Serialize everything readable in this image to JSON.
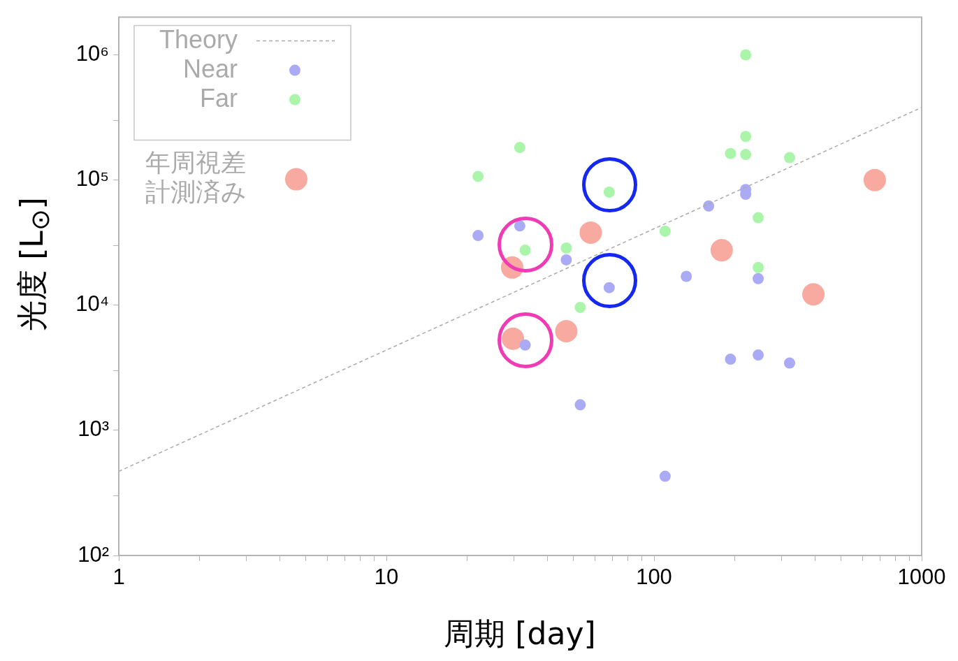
{
  "chart_data": {
    "type": "scatter",
    "xlabel": "周期 [day]",
    "ylabel": "光度 [L$_{⊙}$]",
    "log": "xy",
    "grid": false,
    "legend": "top left",
    "xlim": [
      1,
      1000
    ],
    "ylim": [
      100,
      2000000
    ],
    "xticks": [
      1,
      {
        "value": 2,
        "label": null
      },
      {
        "value": 3,
        "label": null
      },
      {
        "value": 4,
        "label": null
      },
      {
        "value": 5,
        "label": null
      },
      {
        "value": 6,
        "label": null
      },
      {
        "value": 7,
        "label": null
      },
      {
        "value": 8,
        "label": null
      },
      {
        "value": 9,
        "label": null
      },
      10,
      {
        "value": 20,
        "label": null
      },
      {
        "value": 30,
        "label": null
      },
      {
        "value": 40,
        "label": null
      },
      {
        "value": 50,
        "label": null
      },
      {
        "value": 60,
        "label": null
      },
      {
        "value": 70,
        "label": null
      },
      {
        "value": 80,
        "label": null
      },
      {
        "value": 90,
        "label": null
      },
      100,
      {
        "value": 200,
        "label": null
      },
      {
        "value": 300,
        "label": null
      },
      {
        "value": 400,
        "label": null
      },
      {
        "value": 500,
        "label": null
      },
      {
        "value": 600,
        "label": null
      },
      {
        "value": 700,
        "label": null
      },
      {
        "value": 800,
        "label": null
      },
      {
        "value": 900,
        "label": null
      },
      1000
    ],
    "yticks": [
      {
        "value": 100,
        "label": "10²"
      },
      {
        "value": 300,
        "label": null
      },
      {
        "value": 1000,
        "label": "10³"
      },
      {
        "value": 3000,
        "label": null
      },
      {
        "value": 10000,
        "label": "10⁴"
      },
      {
        "value": 30000,
        "label": null
      },
      {
        "value": 100000,
        "label": "10⁵"
      },
      {
        "value": 300000,
        "label": null
      },
      {
        "value": 1000000,
        "label": "10⁶"
      }
    ],
    "series": [
      {
        "name": "Theory",
        "type": "line",
        "color": "#aaaaaa",
        "line_style": "dashed",
        "marker": "none",
        "x": [
          1,
          1000
        ],
        "values": [
          470,
          380000
        ]
      },
      {
        "name": "Near",
        "type": "scatter",
        "color": "#aaaaf5",
        "marker": "circle",
        "x": [
          22,
          31.5,
          47,
          33,
          53,
          68,
          110,
          132,
          160,
          220,
          220,
          245,
          193,
          245,
          321
        ],
        "values": [
          36000,
          43000,
          23000,
          4800,
          1600,
          13800,
          430,
          17000,
          62000,
          84000,
          77000,
          16300,
          3700,
          4000,
          3450
        ]
      },
      {
        "name": "Far",
        "type": "scatter",
        "color": "#aaf5aa",
        "marker": "circle",
        "x": [
          220,
          31.5,
          22,
          68,
          33,
          47,
          53,
          110,
          193,
          220,
          220,
          321,
          245,
          245
        ],
        "values": [
          1000000,
          182000,
          107000,
          80000,
          27500,
          28600,
          9600,
          39000,
          163000,
          223000,
          160000,
          151000,
          50000,
          20000
        ]
      },
      {
        "name": "年周視差計測済み",
        "type": "scatter",
        "color": "#f8aaa0",
        "marker": "circle",
        "x": [
          29.5,
          29.7,
          47,
          58,
          179,
          394,
          668
        ],
        "values": [
          20000,
          5400,
          6200,
          38000,
          27500,
          12200,
          100000
        ]
      }
    ]
  }
}
